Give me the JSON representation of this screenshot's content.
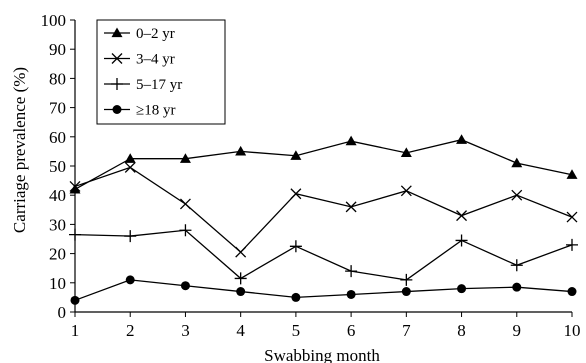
{
  "chart_data": {
    "type": "line",
    "title": "",
    "xlabel": "Swabbing month",
    "ylabel": "Carriage prevalence (%)",
    "x": [
      1,
      2,
      3,
      4,
      5,
      6,
      7,
      8,
      9,
      10
    ],
    "xlim": [
      1,
      10
    ],
    "ylim": [
      0,
      100
    ],
    "yticks": [
      0,
      10,
      20,
      30,
      40,
      50,
      60,
      70,
      80,
      90,
      100
    ],
    "grid": false,
    "legend_position": "top-left",
    "line_color": "#000000",
    "series": [
      {
        "name": "0–2 yr",
        "marker": "triangle",
        "values": [
          42,
          52.5,
          52.5,
          55,
          53.5,
          58.5,
          54.5,
          59,
          51,
          47
        ]
      },
      {
        "name": "3–4 yr",
        "marker": "x",
        "values": [
          43,
          49.5,
          37,
          20.5,
          40.5,
          36,
          41.5,
          33,
          40,
          32.5
        ]
      },
      {
        "name": "5–17 yr",
        "marker": "plus",
        "values": [
          26.5,
          26,
          28,
          11.5,
          22.5,
          14,
          11,
          24.5,
          16,
          23
        ]
      },
      {
        "name": "≥18 yr",
        "marker": "circle",
        "values": [
          4,
          11,
          9,
          7,
          5,
          6,
          7,
          8,
          8.5,
          7
        ]
      }
    ]
  }
}
